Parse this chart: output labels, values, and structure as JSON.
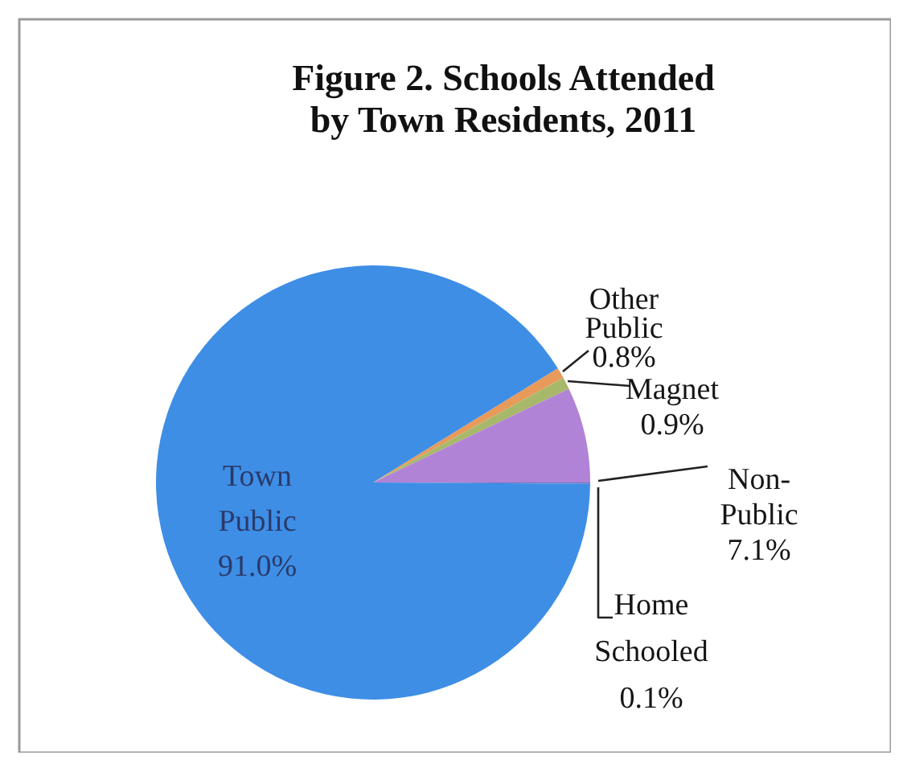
{
  "chart_data": {
    "type": "pie",
    "title": "Figure 2. Schools Attended by Town Residents, 2011",
    "categories": [
      "Other Public",
      "Magnet",
      "Non-Public",
      "Home Schooled",
      "Town Public"
    ],
    "values": [
      0.8,
      0.9,
      7.1,
      0.1,
      91.0
    ],
    "value_labels": [
      "0.8%",
      "0.9%",
      "7.1%",
      "0.1%",
      "91.0%"
    ],
    "colors": [
      "#e89a5a",
      "#a8b86a",
      "#b183d6",
      "#6a78c8",
      "#3e8ee6"
    ]
  }
}
